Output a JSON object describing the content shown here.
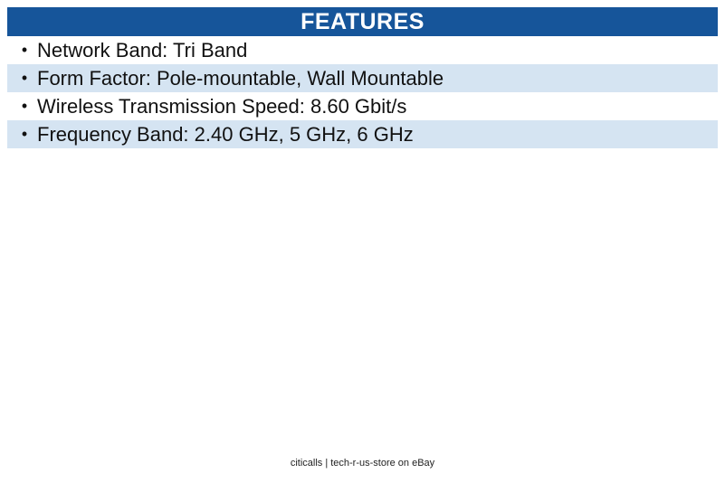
{
  "header": {
    "title": "FEATURES"
  },
  "features": {
    "bullet": "•",
    "items": [
      "Network Band: Tri Band",
      "Form Factor: Pole-mountable, Wall Mountable",
      "Wireless Transmission Speed: 8.60 Gbit/s",
      "Frequency Band: 2.40 GHz, 5 GHz, 6 GHz"
    ]
  },
  "footer": {
    "text": "citicalls | tech-r-us-store on eBay"
  },
  "colors": {
    "header_bg": "#16559A",
    "header_text": "#FFFFFF",
    "row_alt_bg": "#D5E4F2",
    "body_text": "#111111"
  }
}
